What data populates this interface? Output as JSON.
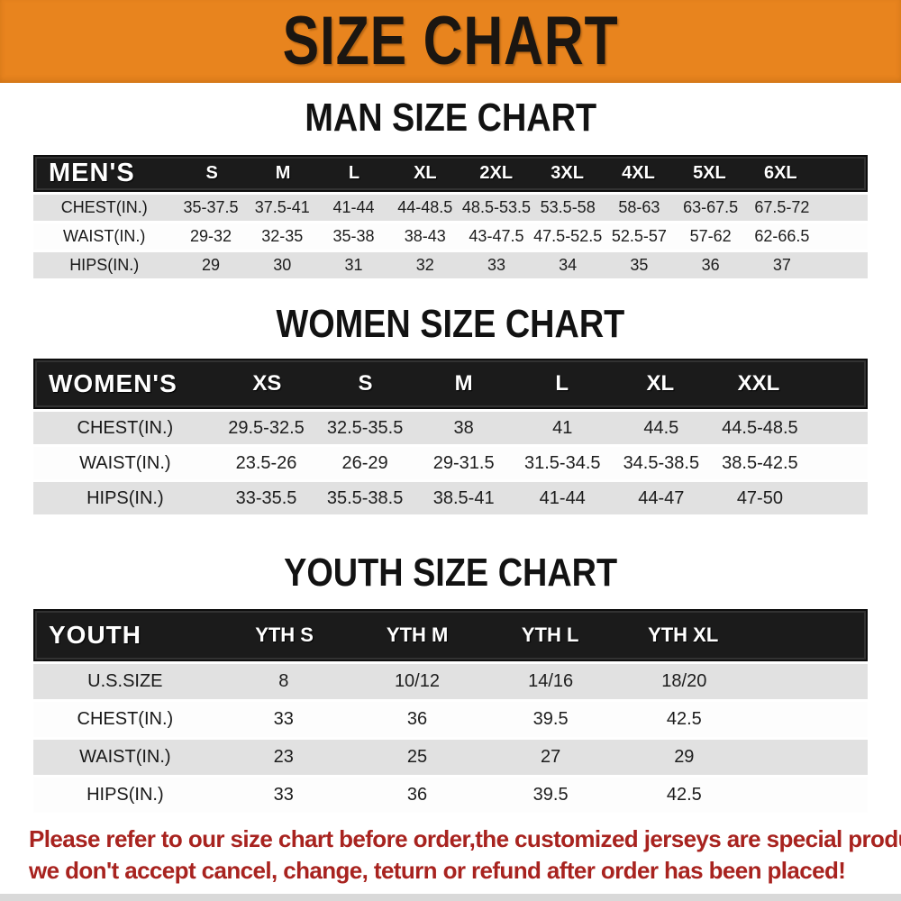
{
  "banner": {
    "title": "SIZE CHART",
    "bg_color": "#E8841E",
    "text_color": "#1b1611"
  },
  "chart_data": [
    {
      "type": "table",
      "title": "MAN SIZE CHART",
      "header_label": "MEN'S",
      "columns": [
        "S",
        "M",
        "L",
        "XL",
        "2XL",
        "3XL",
        "4XL",
        "5XL",
        "6XL"
      ],
      "rows": [
        {
          "label": "CHEST(IN.)",
          "values": [
            "35-37.5",
            "37.5-41",
            "41-44",
            "44-48.5",
            "48.5-53.5",
            "53.5-58",
            "58-63",
            "63-67.5",
            "67.5-72"
          ]
        },
        {
          "label": "WAIST(IN.)",
          "values": [
            "29-32",
            "32-35",
            "35-38",
            "38-43",
            "43-47.5",
            "47.5-52.5",
            "52.5-57",
            "57-62",
            "62-66.5"
          ]
        },
        {
          "label": "HIPS(IN.)",
          "values": [
            "29",
            "30",
            "31",
            "32",
            "33",
            "34",
            "35",
            "36",
            "37"
          ]
        }
      ]
    },
    {
      "type": "table",
      "title": "WOMEN SIZE CHART",
      "header_label": "WOMEN'S",
      "columns": [
        "XS",
        "S",
        "M",
        "L",
        "XL",
        "XXL"
      ],
      "rows": [
        {
          "label": "CHEST(IN.)",
          "values": [
            "29.5-32.5",
            "32.5-35.5",
            "38",
            "41",
            "44.5",
            "44.5-48.5"
          ]
        },
        {
          "label": "WAIST(IN.)",
          "values": [
            "23.5-26",
            "26-29",
            "29-31.5",
            "31.5-34.5",
            "34.5-38.5",
            "38.5-42.5"
          ]
        },
        {
          "label": "HIPS(IN.)",
          "values": [
            "33-35.5",
            "35.5-38.5",
            "38.5-41",
            "41-44",
            "44-47",
            "47-50"
          ]
        }
      ]
    },
    {
      "type": "table",
      "title": "YOUTH SIZE CHART",
      "header_label": "YOUTH",
      "columns": [
        "YTH S",
        "YTH M",
        "YTH L",
        "YTH XL"
      ],
      "rows": [
        {
          "label": "U.S.SIZE",
          "values": [
            "8",
            "10/12",
            "14/16",
            "18/20"
          ]
        },
        {
          "label": "CHEST(IN.)",
          "values": [
            "33",
            "36",
            "39.5",
            "42.5"
          ]
        },
        {
          "label": "WAIST(IN.)",
          "values": [
            "23",
            "25",
            "27",
            "29"
          ]
        },
        {
          "label": "HIPS(IN.)",
          "values": [
            "33",
            "36",
            "39.5",
            "42.5"
          ]
        }
      ]
    }
  ],
  "table_colors": {
    "header_band_bg": "#1b1b1b",
    "header_band_text": "#ffffff",
    "row_gray": "#E1E1E1",
    "row_white": "#FDFDFD"
  },
  "footer": {
    "line1": "Please refer to our size chart before order,the customized jerseys are special products,",
    "line2": "we don't accept cancel, change, teturn or refund after order has been placed!",
    "text_color": "#A8231F"
  }
}
